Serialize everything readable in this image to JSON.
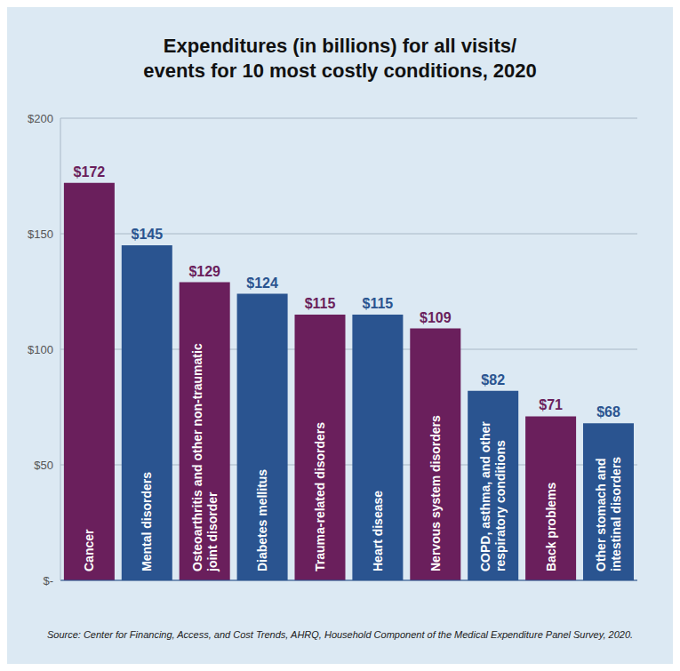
{
  "chart_data": {
    "type": "bar",
    "title": "Expenditures (in billions) for all visits/\nevents for 10 most costly conditions, 2020",
    "categories": [
      "Cancer",
      "Mental disorders",
      "Osteoarthritis and other non-traumatic joint disorder",
      "Diabetes mellitus",
      "Trauma-related disorders",
      "Heart disease",
      "Nervous system disorders",
      "COPD, asthma, and other respiratory conditions",
      "Back problems",
      "Other stomach and intestinal disorders"
    ],
    "values": [
      172,
      145,
      129,
      124,
      115,
      115,
      109,
      82,
      71,
      68
    ],
    "value_labels": [
      "$172",
      "$145",
      "$129",
      "$124",
      "$115",
      "$115",
      "$109",
      "$82",
      "$71",
      "$68"
    ],
    "colors": [
      "#6a1f5c",
      "#2a5490",
      "#6a1f5c",
      "#2a5490",
      "#6a1f5c",
      "#2a5490",
      "#6a1f5c",
      "#2a5490",
      "#6a1f5c",
      "#2a5490"
    ],
    "ylim": [
      0,
      200
    ],
    "yticks": [
      {
        "value": 0,
        "label": "$-"
      },
      {
        "value": 50,
        "label": "$50"
      },
      {
        "value": 100,
        "label": "$100"
      },
      {
        "value": 150,
        "label": "$150"
      },
      {
        "value": 200,
        "label": "$200"
      }
    ],
    "grid": true,
    "data_labels": true,
    "tick_labels": "y",
    "source": "Source: Center for Financing, Access, and Cost Trends, AHRQ, Household Component of the Medical Expenditure Panel Survey, 2020."
  }
}
